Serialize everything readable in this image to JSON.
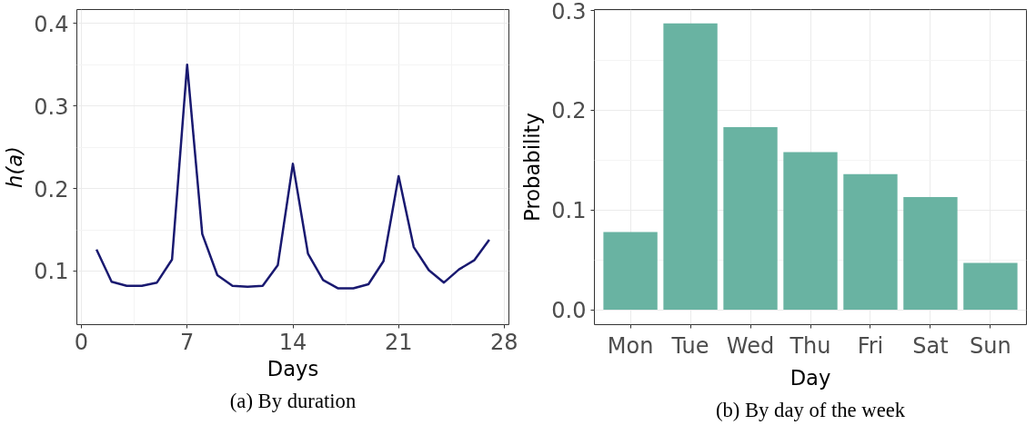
{
  "chart_data": [
    {
      "type": "line",
      "xlabel": "Days",
      "ylabel": "h(a)",
      "annotations": [
        "(a) By duration"
      ],
      "x": [
        1,
        2,
        3,
        4,
        5,
        6,
        7,
        8,
        9,
        10,
        11,
        12,
        13,
        14,
        15,
        16,
        17,
        18,
        19,
        20,
        21,
        22,
        23,
        24,
        25,
        26,
        27
      ],
      "series": [
        {
          "color": "#191970",
          "values": [
            0.126,
            0.087,
            0.082,
            0.082,
            0.086,
            0.114,
            0.35,
            0.145,
            0.095,
            0.082,
            0.081,
            0.082,
            0.107,
            0.23,
            0.121,
            0.089,
            0.079,
            0.079,
            0.084,
            0.112,
            0.215,
            0.129,
            0.101,
            0.086,
            0.102,
            0.113,
            0.138
          ]
        }
      ],
      "xlim": [
        -0.3,
        28.3
      ],
      "ylim": [
        0.035,
        0.417
      ],
      "xticks": [
        0,
        7,
        14,
        21,
        28
      ],
      "yticks": [
        0.1,
        0.2,
        0.3,
        0.4
      ],
      "grid": true,
      "marker": "none",
      "line_style": "solid"
    },
    {
      "type": "bar",
      "xlabel": "Day",
      "ylabel": "Probability",
      "annotations": [
        "(b) By day of the week"
      ],
      "categories": [
        "Mon",
        "Tue",
        "Wed",
        "Thu",
        "Fri",
        "Sat",
        "Sun"
      ],
      "series": [
        {
          "color": "#69b3a2",
          "values": [
            0.078,
            0.287,
            0.183,
            0.158,
            0.136,
            0.113,
            0.047
          ]
        }
      ],
      "ylim": [
        -0.015,
        0.301
      ],
      "yticks": [
        {
          "value": 0,
          "label": "0.0"
        },
        0.1,
        0.2,
        0.3
      ],
      "grid": true
    }
  ]
}
